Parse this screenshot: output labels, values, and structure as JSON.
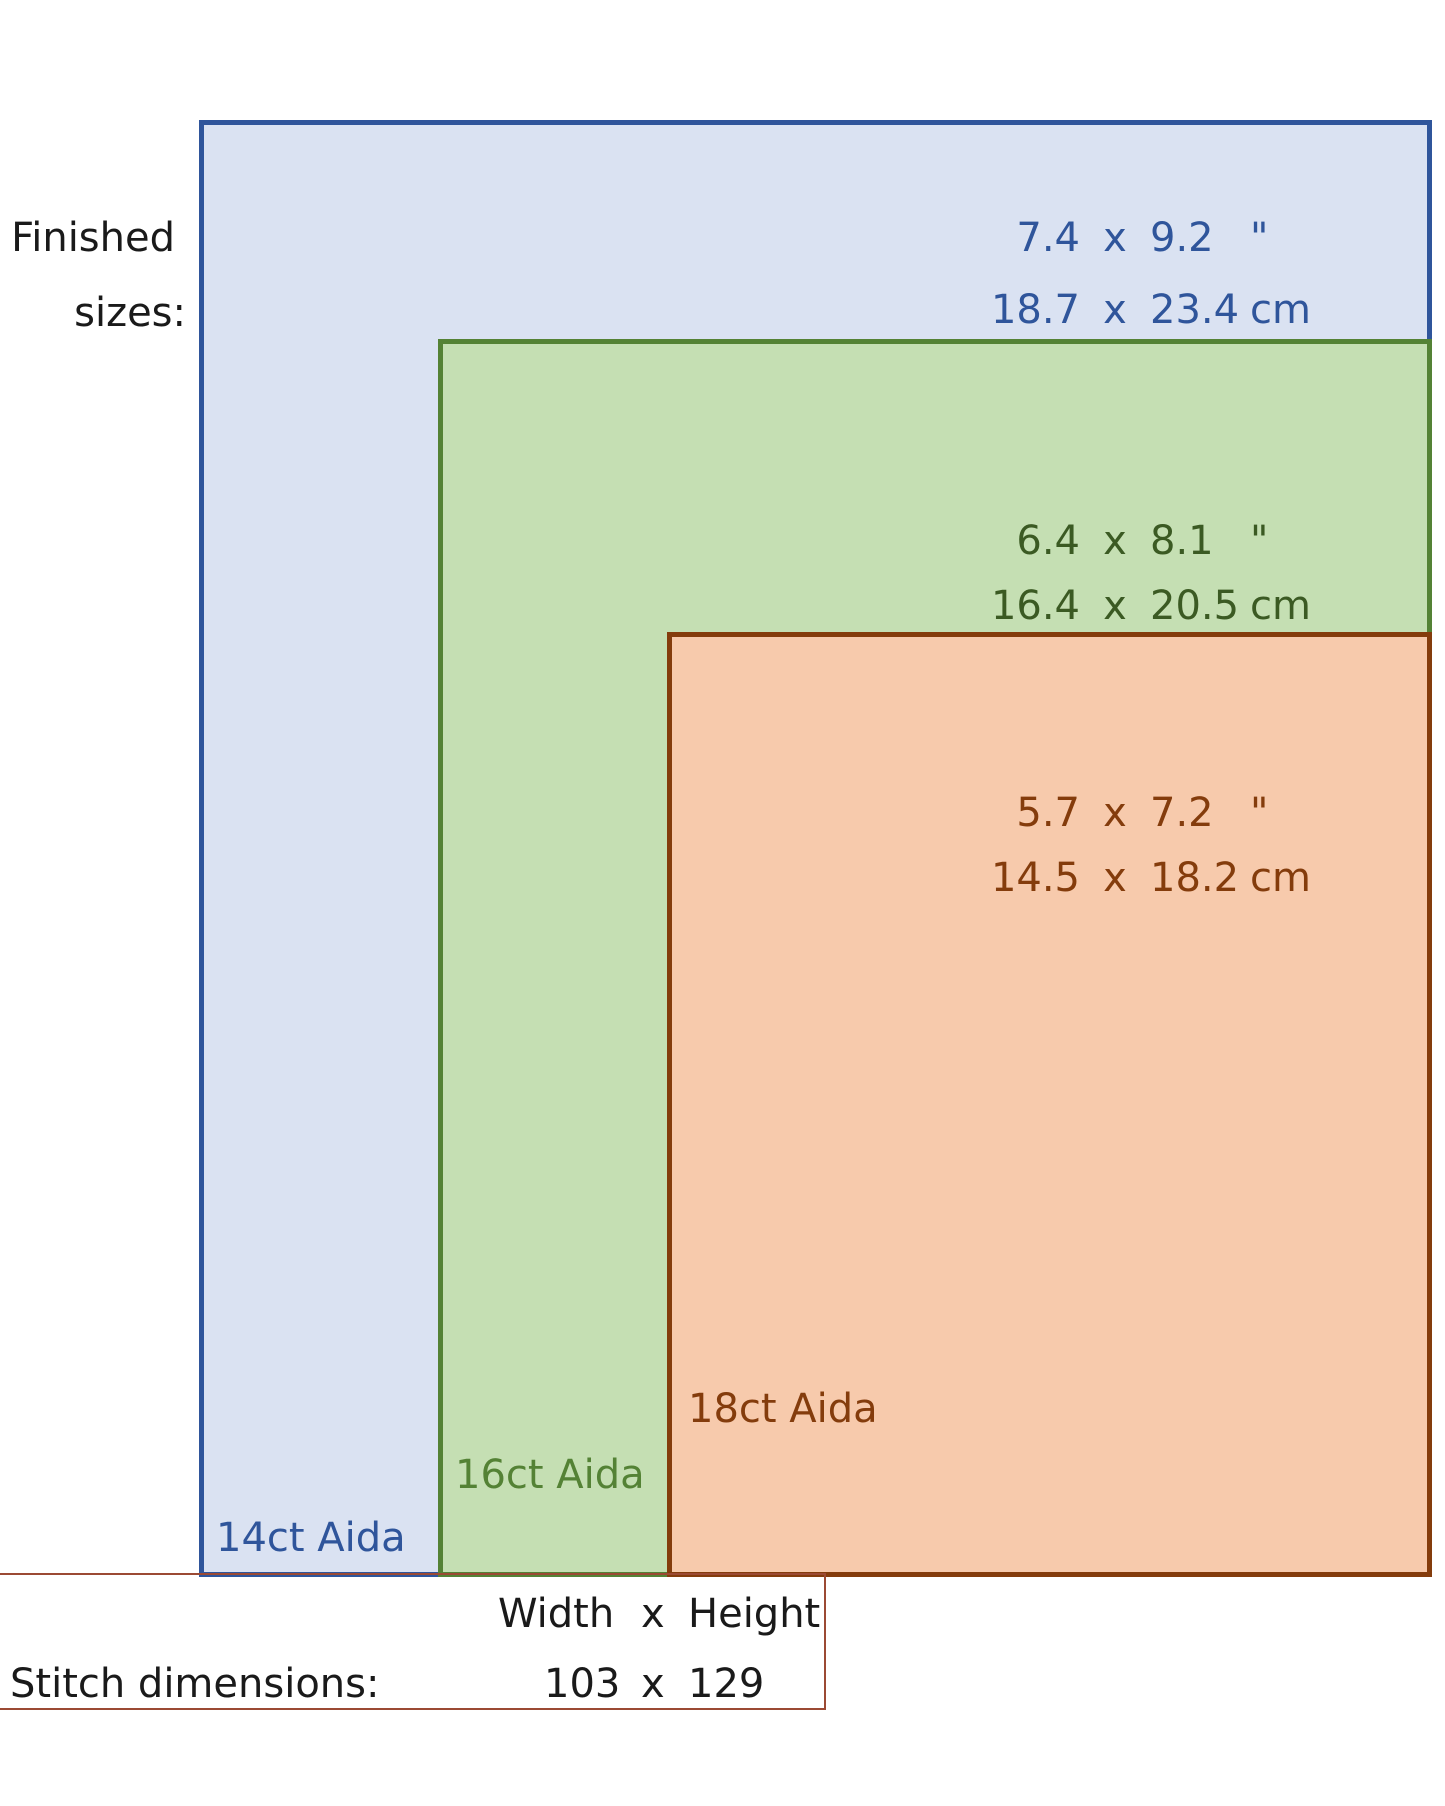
{
  "finished_label": {
    "line1": "Finished",
    "line2": "sizes:"
  },
  "fabrics": [
    {
      "label": "14ct Aida",
      "border_color": "#2f559b",
      "fill_color": "#dae2f2",
      "text_color": "#2f559b",
      "inches": {
        "width": "7.4",
        "x": "x",
        "height": "9.2",
        "unit": "\""
      },
      "cm": {
        "width": "18.7",
        "x": "x",
        "height": "23.4",
        "unit": "cm"
      }
    },
    {
      "label": "16ct Aida",
      "border_color": "#548235",
      "fill_color": "#c5dfb3",
      "text_color": "#548235",
      "inches": {
        "width": "6.4",
        "x": "x",
        "height": "8.1",
        "unit": "\""
      },
      "cm": {
        "width": "16.4",
        "x": "x",
        "height": "20.5",
        "unit": "cm"
      }
    },
    {
      "label": "18ct Aida",
      "border_color": "#843c0c",
      "fill_color": "#f7caac",
      "text_color": "#843c0c",
      "inches": {
        "width": "5.7",
        "x": "x",
        "height": "7.2",
        "unit": "\""
      },
      "cm": {
        "width": "14.5",
        "x": "x",
        "height": "18.2",
        "unit": "cm"
      }
    }
  ],
  "dims_text_colors": [
    "#2f559b",
    "#3b5a23",
    "#843c0c"
  ],
  "stitch": {
    "width_header": "Width",
    "x_header": "x",
    "height_header": "Height",
    "label": "Stitch dimensions:",
    "width": "103",
    "x": "x",
    "height": "129"
  }
}
